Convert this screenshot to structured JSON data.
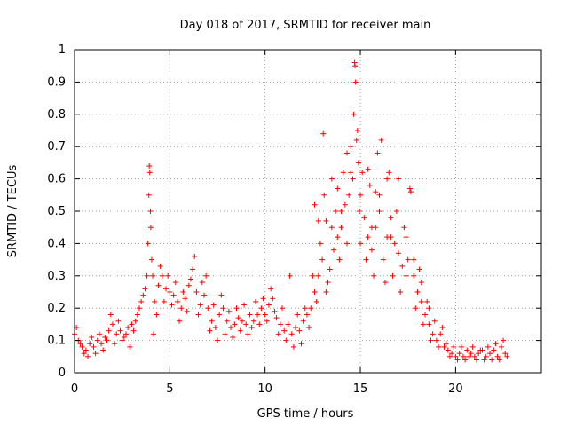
{
  "chart_data": {
    "type": "scatter",
    "title": "Day 018 of 2017, SRMTID for receiver main",
    "xlabel": "GPS time / hours",
    "ylabel": "SRMTID / TECUs",
    "xlim": [
      0,
      24.5
    ],
    "ylim": [
      0,
      1
    ],
    "xticks": [
      0,
      5,
      10,
      15,
      20
    ],
    "xtick_labels": [
      "0",
      "5",
      "10",
      "15",
      "20"
    ],
    "yticks": [
      0,
      0.1,
      0.2,
      0.3,
      0.4,
      0.5,
      0.6,
      0.7,
      0.8,
      0.9,
      1
    ],
    "ytick_labels": [
      "0",
      "0.1",
      "0.2",
      "0.3",
      "0.4",
      "0.5",
      "0.6",
      "0.7",
      "0.8",
      "0.9",
      "1"
    ],
    "grid": true,
    "marker": "+",
    "marker_color": "#ff0000",
    "series": [
      {
        "name": "SRMTID",
        "points": [
          [
            0.0,
            0.12
          ],
          [
            0.2,
            0.1
          ],
          [
            0.4,
            0.08
          ],
          [
            0.6,
            0.07
          ],
          [
            0.8,
            0.09
          ],
          [
            1.0,
            0.08
          ],
          [
            1.2,
            0.1
          ],
          [
            1.4,
            0.09
          ],
          [
            1.6,
            0.11
          ],
          [
            1.8,
            0.13
          ],
          [
            2.0,
            0.15
          ],
          [
            2.2,
            0.12
          ],
          [
            2.4,
            0.13
          ],
          [
            2.6,
            0.11
          ],
          [
            2.8,
            0.14
          ],
          [
            3.0,
            0.15
          ],
          [
            3.2,
            0.16
          ],
          [
            3.4,
            0.2
          ],
          [
            3.6,
            0.24
          ],
          [
            3.8,
            0.3
          ],
          [
            3.9,
            0.55
          ],
          [
            3.95,
            0.62
          ],
          [
            4.0,
            0.45
          ],
          [
            4.1,
            0.3
          ],
          [
            4.2,
            0.22
          ],
          [
            4.4,
            0.27
          ],
          [
            4.6,
            0.3
          ],
          [
            4.8,
            0.26
          ],
          [
            5.0,
            0.25
          ],
          [
            5.2,
            0.24
          ],
          [
            5.4,
            0.22
          ],
          [
            5.6,
            0.2
          ],
          [
            5.8,
            0.23
          ],
          [
            6.0,
            0.27
          ],
          [
            6.2,
            0.32
          ],
          [
            6.4,
            0.25
          ],
          [
            6.6,
            0.21
          ],
          [
            6.8,
            0.24
          ],
          [
            7.0,
            0.2
          ],
          [
            7.2,
            0.16
          ],
          [
            7.4,
            0.14
          ],
          [
            7.6,
            0.18
          ],
          [
            7.8,
            0.2
          ],
          [
            8.0,
            0.16
          ],
          [
            8.2,
            0.14
          ],
          [
            8.4,
            0.15
          ],
          [
            8.6,
            0.17
          ],
          [
            8.8,
            0.16
          ],
          [
            9.0,
            0.15
          ],
          [
            9.2,
            0.18
          ],
          [
            9.4,
            0.16
          ],
          [
            9.6,
            0.18
          ],
          [
            9.8,
            0.2
          ],
          [
            10.0,
            0.18
          ],
          [
            10.2,
            0.21
          ],
          [
            10.4,
            0.23
          ],
          [
            10.6,
            0.17
          ],
          [
            10.8,
            0.15
          ],
          [
            11.0,
            0.13
          ],
          [
            11.2,
            0.15
          ],
          [
            11.4,
            0.12
          ],
          [
            11.6,
            0.14
          ],
          [
            11.8,
            0.13
          ],
          [
            12.0,
            0.16
          ],
          [
            12.2,
            0.18
          ],
          [
            12.4,
            0.2
          ],
          [
            12.6,
            0.25
          ],
          [
            12.8,
            0.3
          ],
          [
            13.0,
            0.35
          ],
          [
            13.2,
            0.25
          ],
          [
            13.4,
            0.32
          ],
          [
            13.6,
            0.38
          ],
          [
            13.8,
            0.42
          ],
          [
            14.0,
            0.45
          ],
          [
            14.2,
            0.52
          ],
          [
            14.4,
            0.55
          ],
          [
            14.6,
            0.6
          ],
          [
            14.7,
            0.96
          ],
          [
            14.75,
            0.9
          ],
          [
            14.8,
            0.72
          ],
          [
            14.9,
            0.65
          ],
          [
            15.0,
            0.55
          ],
          [
            15.2,
            0.48
          ],
          [
            15.4,
            0.42
          ],
          [
            15.6,
            0.38
          ],
          [
            15.8,
            0.45
          ],
          [
            16.0,
            0.55
          ],
          [
            16.2,
            0.35
          ],
          [
            16.4,
            0.42
          ],
          [
            16.6,
            0.48
          ],
          [
            16.8,
            0.4
          ],
          [
            17.0,
            0.37
          ],
          [
            17.2,
            0.33
          ],
          [
            17.4,
            0.42
          ],
          [
            17.6,
            0.57
          ],
          [
            17.8,
            0.3
          ],
          [
            18.0,
            0.25
          ],
          [
            18.2,
            0.22
          ],
          [
            18.4,
            0.18
          ],
          [
            18.6,
            0.15
          ],
          [
            18.8,
            0.12
          ],
          [
            19.0,
            0.1
          ],
          [
            19.2,
            0.12
          ],
          [
            19.4,
            0.08
          ],
          [
            19.6,
            0.07
          ],
          [
            19.8,
            0.06
          ],
          [
            20.0,
            0.05
          ],
          [
            20.2,
            0.06
          ],
          [
            20.4,
            0.05
          ],
          [
            20.6,
            0.07
          ],
          [
            20.8,
            0.06
          ],
          [
            21.0,
            0.05
          ],
          [
            21.2,
            0.06
          ],
          [
            21.4,
            0.07
          ],
          [
            21.6,
            0.05
          ],
          [
            21.8,
            0.06
          ],
          [
            22.0,
            0.07
          ],
          [
            22.2,
            0.05
          ],
          [
            22.4,
            0.08
          ],
          [
            22.6,
            0.06
          ],
          [
            0.1,
            0.14
          ],
          [
            0.3,
            0.09
          ],
          [
            0.5,
            0.06
          ],
          [
            0.7,
            0.05
          ],
          [
            0.9,
            0.11
          ],
          [
            1.1,
            0.06
          ],
          [
            1.3,
            0.12
          ],
          [
            1.5,
            0.07
          ],
          [
            1.7,
            0.1
          ],
          [
            1.9,
            0.18
          ],
          [
            2.1,
            0.09
          ],
          [
            2.3,
            0.16
          ],
          [
            2.5,
            0.1
          ],
          [
            2.7,
            0.12
          ],
          [
            2.9,
            0.08
          ],
          [
            3.1,
            0.13
          ],
          [
            3.3,
            0.18
          ],
          [
            3.5,
            0.22
          ],
          [
            3.7,
            0.26
          ],
          [
            3.85,
            0.4
          ],
          [
            3.92,
            0.64
          ],
          [
            3.98,
            0.5
          ],
          [
            4.05,
            0.35
          ],
          [
            4.15,
            0.12
          ],
          [
            4.3,
            0.18
          ],
          [
            4.5,
            0.33
          ],
          [
            4.7,
            0.22
          ],
          [
            4.9,
            0.3
          ],
          [
            5.1,
            0.21
          ],
          [
            5.3,
            0.28
          ],
          [
            5.5,
            0.16
          ],
          [
            5.7,
            0.25
          ],
          [
            5.9,
            0.19
          ],
          [
            6.1,
            0.29
          ],
          [
            6.3,
            0.36
          ],
          [
            6.5,
            0.18
          ],
          [
            6.7,
            0.28
          ],
          [
            6.9,
            0.3
          ],
          [
            7.1,
            0.13
          ],
          [
            7.3,
            0.21
          ],
          [
            7.5,
            0.1
          ],
          [
            7.7,
            0.24
          ],
          [
            7.9,
            0.12
          ],
          [
            8.1,
            0.19
          ],
          [
            8.3,
            0.11
          ],
          [
            8.5,
            0.2
          ],
          [
            8.7,
            0.13
          ],
          [
            8.9,
            0.21
          ],
          [
            9.1,
            0.12
          ],
          [
            9.3,
            0.14
          ],
          [
            9.5,
            0.22
          ],
          [
            9.7,
            0.15
          ],
          [
            9.9,
            0.23
          ],
          [
            10.1,
            0.16
          ],
          [
            10.3,
            0.26
          ],
          [
            10.5,
            0.19
          ],
          [
            10.7,
            0.12
          ],
          [
            10.9,
            0.2
          ],
          [
            11.1,
            0.1
          ],
          [
            11.3,
            0.3
          ],
          [
            11.5,
            0.08
          ],
          [
            11.7,
            0.18
          ],
          [
            11.9,
            0.09
          ],
          [
            12.1,
            0.2
          ],
          [
            12.3,
            0.14
          ],
          [
            12.5,
            0.3
          ],
          [
            12.7,
            0.22
          ],
          [
            12.9,
            0.4
          ],
          [
            13.05,
            0.74
          ],
          [
            13.1,
            0.55
          ],
          [
            13.3,
            0.28
          ],
          [
            13.5,
            0.45
          ],
          [
            13.7,
            0.5
          ],
          [
            13.9,
            0.35
          ],
          [
            14.1,
            0.62
          ],
          [
            14.3,
            0.4
          ],
          [
            14.5,
            0.7
          ],
          [
            14.65,
            0.8
          ],
          [
            14.72,
            0.95
          ],
          [
            14.85,
            0.75
          ],
          [
            14.95,
            0.5
          ],
          [
            15.1,
            0.62
          ],
          [
            15.3,
            0.35
          ],
          [
            15.5,
            0.58
          ],
          [
            15.7,
            0.3
          ],
          [
            15.9,
            0.68
          ],
          [
            16.1,
            0.72
          ],
          [
            16.3,
            0.28
          ],
          [
            16.5,
            0.62
          ],
          [
            16.7,
            0.3
          ],
          [
            16.9,
            0.5
          ],
          [
            17.1,
            0.25
          ],
          [
            17.3,
            0.45
          ],
          [
            17.5,
            0.35
          ],
          [
            17.65,
            0.56
          ],
          [
            17.9,
            0.2
          ],
          [
            18.1,
            0.32
          ],
          [
            18.3,
            0.15
          ],
          [
            18.5,
            0.22
          ],
          [
            18.7,
            0.1
          ],
          [
            18.9,
            0.16
          ],
          [
            19.1,
            0.08
          ],
          [
            19.3,
            0.14
          ],
          [
            19.5,
            0.09
          ],
          [
            19.7,
            0.05
          ],
          [
            19.9,
            0.08
          ],
          [
            20.1,
            0.04
          ],
          [
            20.3,
            0.08
          ],
          [
            20.5,
            0.04
          ],
          [
            20.7,
            0.05
          ],
          [
            20.9,
            0.08
          ],
          [
            21.1,
            0.04
          ],
          [
            21.3,
            0.07
          ],
          [
            21.5,
            0.04
          ],
          [
            21.7,
            0.08
          ],
          [
            21.9,
            0.04
          ],
          [
            22.1,
            0.09
          ],
          [
            22.3,
            0.04
          ],
          [
            22.5,
            0.1
          ],
          [
            22.7,
            0.05
          ],
          [
            14.3,
            0.68
          ],
          [
            14.5,
            0.62
          ],
          [
            13.5,
            0.6
          ],
          [
            13.8,
            0.57
          ],
          [
            15.4,
            0.63
          ],
          [
            15.8,
            0.56
          ],
          [
            16.4,
            0.6
          ],
          [
            16.0,
            0.5
          ],
          [
            17.0,
            0.6
          ],
          [
            13.2,
            0.47
          ],
          [
            12.8,
            0.47
          ],
          [
            12.6,
            0.52
          ],
          [
            14.0,
            0.5
          ],
          [
            15.0,
            0.4
          ],
          [
            15.6,
            0.45
          ],
          [
            16.6,
            0.42
          ],
          [
            17.4,
            0.3
          ],
          [
            18.2,
            0.28
          ],
          [
            17.8,
            0.35
          ],
          [
            18.6,
            0.2
          ]
        ]
      }
    ]
  }
}
